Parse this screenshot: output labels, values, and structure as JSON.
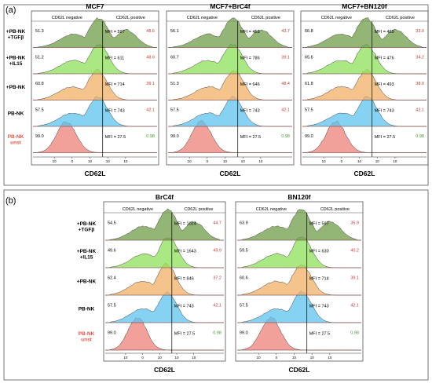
{
  "panels": [
    {
      "label": "(a)",
      "row_labels": [
        {
          "lines": [
            "+PB-NK",
            "+TGFβ"
          ],
          "color": "#000000"
        },
        {
          "lines": [
            "+PB-NK",
            "+IL15"
          ],
          "color": "#000000"
        },
        {
          "lines": [
            "+PB-NK"
          ],
          "color": "#000000"
        },
        {
          "lines": [
            "PB-NK"
          ],
          "color": "#000000"
        },
        {
          "lines": [
            "PB-NK",
            "unst"
          ],
          "color": "#e0584a"
        }
      ]
    },
    {
      "label": "(b)",
      "row_labels": [
        {
          "lines": [
            "+PB-NK",
            "+TGFβ"
          ],
          "color": "#000000"
        },
        {
          "lines": [
            "+PB-NK",
            "+IL15"
          ],
          "color": "#000000"
        },
        {
          "lines": [
            "+PB-NK"
          ],
          "color": "#000000"
        },
        {
          "lines": [
            "PB-NK"
          ],
          "color": "#000000"
        },
        {
          "lines": [
            "PB-NK",
            "unst"
          ],
          "color": "#e0584a"
        }
      ]
    }
  ],
  "header": {
    "negative": "CD62L negative",
    "positive": "CD62L positive"
  },
  "colors": {
    "tracks": [
      "#6f9d4a",
      "#8ee05a",
      "#f1b066",
      "#5cc3ee",
      "#ec8078"
    ],
    "pct_negative": "#000000",
    "pct_positive": "#c0392b",
    "pct_positive_unst": "#3e9b2a",
    "frame": "#555555"
  },
  "chart_data": [
    {
      "type": "histogram",
      "title": "MCF7",
      "xlabel": "CD62L",
      "tick_labels": [
        "10",
        "0",
        "10",
        "10",
        "10"
      ],
      "rows": [
        {
          "name": "+PB-NK +TGFβ",
          "neg": "51.3",
          "pos": "48.6",
          "mfi": "MFI = 597"
        },
        {
          "name": "+PB-NK +IL15",
          "neg": "51.2",
          "pos": "48.6",
          "mfi": "MFI = 611"
        },
        {
          "name": "+PB-NK",
          "neg": "60.8",
          "pos": "39.1",
          "mfi": "MFI = 714"
        },
        {
          "name": "PB-NK",
          "neg": "57.5",
          "pos": "42.1",
          "mfi": "MFI = 743"
        },
        {
          "name": "PB-NK unst",
          "neg": "99.0",
          "pos": "0.98",
          "mfi": "MFI = 27.5"
        }
      ]
    },
    {
      "type": "histogram",
      "title": "MCF7+BrC4f",
      "xlabel": "CD62L",
      "tick_labels": [
        "10",
        "0",
        "10",
        "10",
        "10"
      ],
      "rows": [
        {
          "name": "+PB-NK +TGFβ",
          "neg": "56.1",
          "pos": "43.7",
          "mfi": "MFI = 453"
        },
        {
          "name": "+PB-NK +IL15",
          "neg": "60.7",
          "pos": "39.1",
          "mfi": "MFI = 786"
        },
        {
          "name": "+PB-NK",
          "neg": "51.3",
          "pos": "48.4",
          "mfi": "MFI = 646"
        },
        {
          "name": "PB-NK",
          "neg": "57.5",
          "pos": "42.1",
          "mfi": "MFI = 743"
        },
        {
          "name": "PB-NK unst",
          "neg": "99.0",
          "pos": "0.98",
          "mfi": "MFI = 27.5"
        }
      ]
    },
    {
      "type": "histogram",
      "title": "MCF7+BN120f",
      "xlabel": "CD62L",
      "tick_labels": [
        "10",
        "0",
        "10",
        "10",
        "10"
      ],
      "rows": [
        {
          "name": "+PB-NK +TGFβ",
          "neg": "66.8",
          "pos": "33.0",
          "mfi": "MFI = 489"
        },
        {
          "name": "+PB-NK +IL15",
          "neg": "65.6",
          "pos": "34.2",
          "mfi": "MFI = 476"
        },
        {
          "name": "+PB-NK",
          "neg": "61.8",
          "pos": "38.0",
          "mfi": "MFI = 493"
        },
        {
          "name": "PB-NK",
          "neg": "57.5",
          "pos": "42.1",
          "mfi": "MFI = 743"
        },
        {
          "name": "PB-NK unst",
          "neg": "99.0",
          "pos": "0.98",
          "mfi": "MFI = 27.5"
        }
      ]
    },
    {
      "type": "histogram",
      "title": "BrC4f",
      "xlabel": "CD62L",
      "tick_labels": [
        "10",
        "0",
        "10",
        "10",
        "10"
      ],
      "rows": [
        {
          "name": "+PB-NK +TGFβ",
          "neg": "54.5",
          "pos": "44.7",
          "mfi": "MFI = 1024"
        },
        {
          "name": "+PB-NK +IL15",
          "neg": "49.6",
          "pos": "49.9",
          "mfi": "MFI = 1643"
        },
        {
          "name": "+PB-NK",
          "neg": "62.4",
          "pos": "37.2",
          "mfi": "MFI = 846"
        },
        {
          "name": "PB-NK",
          "neg": "57.5",
          "pos": "42.1",
          "mfi": "MFI = 743"
        },
        {
          "name": "PB-NK unst",
          "neg": "99.0",
          "pos": "0.98",
          "mfi": "MFI = 27.5"
        }
      ]
    },
    {
      "type": "histogram",
      "title": "BN120f",
      "xlabel": "CD62L",
      "tick_labels": [
        "10",
        "0",
        "10",
        "10",
        "10"
      ],
      "rows": [
        {
          "name": "+PB-NK +TGFβ",
          "neg": "63.9",
          "pos": "35.9",
          "mfi": "MFI = 597"
        },
        {
          "name": "+PB-NK +IL15",
          "neg": "59.5",
          "pos": "40.2",
          "mfi": "MFI = 630"
        },
        {
          "name": "+PB-NK",
          "neg": "60.6",
          "pos": "39.1",
          "mfi": "MFI = 714"
        },
        {
          "name": "PB-NK",
          "neg": "57.5",
          "pos": "42.1",
          "mfi": "MFI = 743"
        },
        {
          "name": "PB-NK unst",
          "neg": "99.0",
          "pos": "0.98",
          "mfi": "MFI = 27.5"
        }
      ]
    }
  ]
}
